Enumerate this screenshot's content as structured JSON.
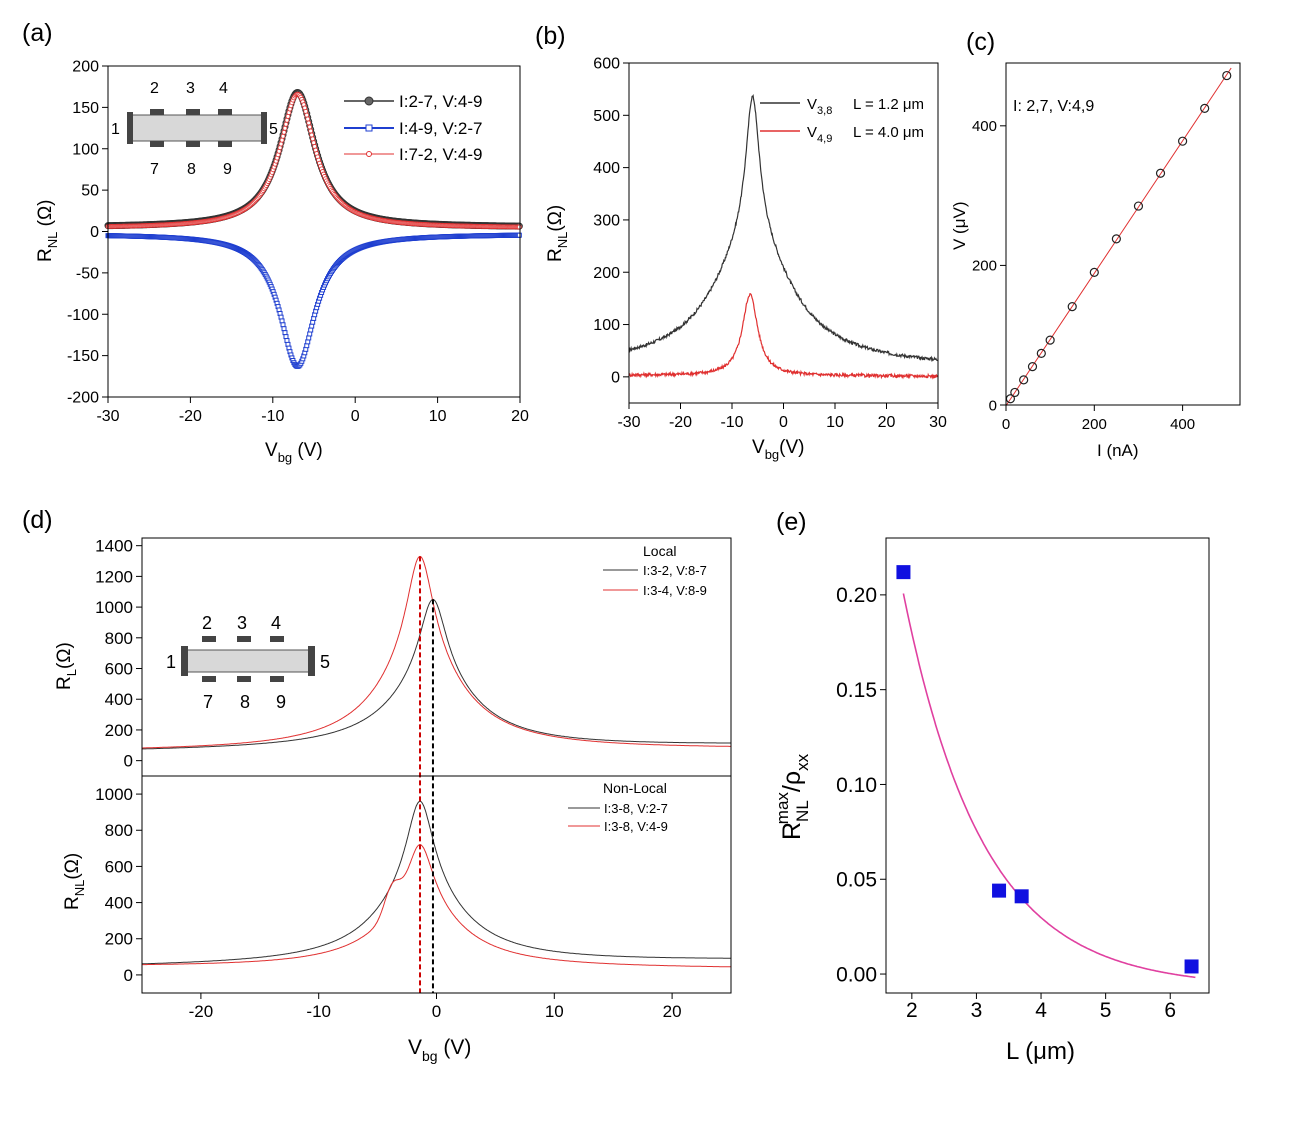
{
  "colors": {
    "black": "#333333",
    "blue": "#1f3fd0",
    "red": "#e03030",
    "magenta": "#e040a0",
    "square": "#1010e0",
    "gray": "#4a4a4a"
  },
  "chart_data": [
    {
      "type": "line",
      "panel_label": "(a)",
      "title": "",
      "xlabel": "V",
      "xlabel_sub": "bg",
      "xlabel_unit": " (V)",
      "ylabel": "R",
      "ylabel_sub": "NL",
      "ylabel_unit": " (Ω)",
      "xlim": [
        -30,
        20
      ],
      "ylim": [
        -200,
        200
      ],
      "xticks": [
        -30,
        -20,
        -10,
        0,
        10,
        20
      ],
      "yticks": [
        -200,
        -150,
        -100,
        -50,
        0,
        50,
        100,
        150,
        200
      ],
      "series": [
        {
          "name": "I:2-7, V:4-9",
          "color": "#333333",
          "marker": "filled-circle",
          "peak_x": -7,
          "peak_y": 168,
          "width": 2.6,
          "baseline": 5
        },
        {
          "name": "I:4-9, V:2-7",
          "color": "#1f3fd0",
          "marker": "open-square",
          "peak_x": -7,
          "peak_y": -163,
          "width": 2.6,
          "baseline": -3
        },
        {
          "name": "I:7-2, V:4-9",
          "color": "#e03030",
          "marker": "small-circle",
          "peak_x": -7,
          "peak_y": 166,
          "width": 2.6,
          "baseline": 4
        }
      ],
      "inset": {
        "top_pads": [
          "2",
          "3",
          "4"
        ],
        "bottom_pads": [
          "7",
          "8",
          "9"
        ],
        "left": "1",
        "right": "5"
      }
    },
    {
      "type": "line",
      "panel_label": "(b)",
      "xlabel": "V",
      "xlabel_sub": "bg",
      "xlabel_unit": "(V)",
      "ylabel": "R",
      "ylabel_sub": "NL",
      "ylabel_unit": "(Ω)",
      "xlim": [
        -30,
        30
      ],
      "ylim": [
        -50,
        600
      ],
      "xticks": [
        -30,
        -20,
        -10,
        0,
        10,
        20,
        30
      ],
      "yticks": [
        0,
        100,
        200,
        300,
        400,
        500,
        600
      ],
      "series": [
        {
          "name": "V",
          "name_sub": "3,8",
          "label_extra": "L = 1.2 μm",
          "color": "#333333",
          "peak_x": -6,
          "peak_y": 565,
          "baseline_left": 50,
          "baseline_right": 45
        },
        {
          "name": "V",
          "name_sub": "4,9",
          "label_extra": "L = 4.0 μm",
          "color": "#e03030",
          "peak_x": -6.5,
          "peak_y": 158,
          "baseline_left": 3,
          "baseline_right": 1
        }
      ]
    },
    {
      "type": "scatter",
      "panel_label": "(c)",
      "annotation": "I: 2,7, V:4,9",
      "xlabel": "I (nA)",
      "ylabel": "V (μV)",
      "xlim": [
        0,
        530
      ],
      "ylim": [
        0,
        490
      ],
      "xticks": [
        0,
        200,
        400
      ],
      "yticks": [
        0,
        200,
        400
      ],
      "x": [
        10,
        20,
        40,
        60,
        80,
        100,
        150,
        200,
        250,
        300,
        350,
        400,
        450,
        500
      ],
      "y": [
        9,
        18,
        36,
        55,
        74,
        93,
        141,
        190,
        238,
        285,
        332,
        378,
        425,
        472
      ],
      "fit_color": "#e03030"
    },
    {
      "type": "line",
      "panel_label": "(d)",
      "xlabel": "V",
      "xlabel_sub": "bg",
      "xlabel_unit": " (V)",
      "xlim": [
        -25,
        25
      ],
      "xticks": [
        -20,
        -10,
        0,
        10,
        20
      ],
      "subplots": [
        {
          "legend_title": "Local",
          "ylabel": "R",
          "ylabel_sub": "L",
          "ylabel_unit": "(Ω)",
          "ylim": [
            -100,
            1450
          ],
          "yticks": [
            0,
            200,
            400,
            600,
            800,
            1000,
            1200,
            1400
          ],
          "series": [
            {
              "name": "I:3-2, V:8-7",
              "color": "#333333",
              "peak_x": -0.3,
              "peak_y": 1050,
              "baseline_left": 60,
              "baseline_right": 100
            },
            {
              "name": "I:3-4, V:8-9",
              "color": "#e03030",
              "peak_x": -1.4,
              "peak_y": 1330,
              "baseline_left": 60,
              "baseline_right": 75
            }
          ]
        },
        {
          "legend_title": "Non-Local",
          "ylabel": "R",
          "ylabel_sub": "NL",
          "ylabel_unit": "(Ω)",
          "ylim": [
            -100,
            1100
          ],
          "yticks": [
            0,
            200,
            400,
            600,
            800,
            1000
          ],
          "series": [
            {
              "name": "I:3-8, V:2-7",
              "color": "#333333",
              "peak_x": -1.4,
              "peak_y": 960,
              "baseline_left": 45,
              "baseline_right": 80
            },
            {
              "name": "I:3-8, V:4-9",
              "color": "#e03030",
              "peak_x": -1.4,
              "peak_y": 720,
              "baseline_left": 45,
              "baseline_right": 35
            }
          ]
        }
      ],
      "dashed_lines": [
        {
          "x": -1.4,
          "color": "#cc0000"
        },
        {
          "x": -0.3,
          "color": "#000000"
        }
      ],
      "inset": {
        "top_pads": [
          "2",
          "3",
          "4"
        ],
        "bottom_pads": [
          "7",
          "8",
          "9"
        ],
        "left": "1",
        "right": "5"
      }
    },
    {
      "type": "scatter",
      "panel_label": "(e)",
      "xlabel": "L (μm)",
      "ylabel": "R",
      "ylabel_sub": "NL",
      "ylabel_sup": "max",
      "ylabel_tail": "/ρ",
      "ylabel_tail_sub": "xx",
      "xlim": [
        1.6,
        6.6
      ],
      "ylim": [
        -0.01,
        0.23
      ],
      "xticks": [
        2,
        3,
        4,
        5,
        6
      ],
      "yticks": [
        0.0,
        0.05,
        0.1,
        0.15,
        0.2
      ],
      "ytick_labels": [
        "0.00",
        "0.05",
        "0.10",
        "0.15",
        "0.20"
      ],
      "x": [
        1.87,
        3.35,
        3.7,
        6.33
      ],
      "y": [
        0.212,
        0.044,
        0.041,
        0.004
      ],
      "fit": {
        "a": 0.95,
        "l": 1.23,
        "color": "#e040a0"
      }
    }
  ]
}
